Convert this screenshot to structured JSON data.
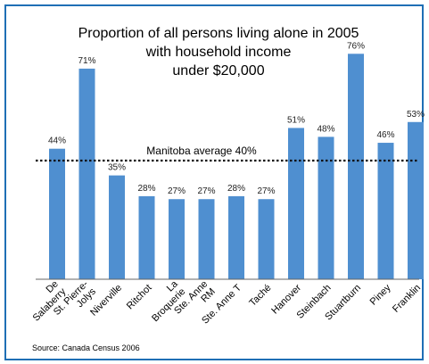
{
  "chart_data": {
    "type": "bar",
    "title_lines": [
      "Proportion of all persons living alone in 2005",
      "with household income",
      "under $20,000"
    ],
    "categories": [
      "De Salaberry",
      "St. Pierre-Jolys",
      "Niverville",
      "Ritchot",
      "La Broquerie",
      "Ste. Anne RM",
      "Ste. Anne T",
      "Taché",
      "Hanover",
      "Steinbach",
      "Stuartburn",
      "Piney",
      "Franklin"
    ],
    "category_label_lines": [
      [
        "De",
        "Salaberry"
      ],
      [
        "St. Pierre-",
        "Jolys"
      ],
      [
        "Niverville"
      ],
      [
        "Ritchot"
      ],
      [
        "La",
        "Broquerie"
      ],
      [
        "Ste. Anne",
        "RM"
      ],
      [
        "Ste. Anne T"
      ],
      [
        "Taché"
      ],
      [
        "Hanover"
      ],
      [
        "Steinbach"
      ],
      [
        "Stuartburn"
      ],
      [
        "Piney"
      ],
      [
        "Franklin"
      ]
    ],
    "values": [
      44,
      71,
      35,
      28,
      27,
      27,
      28,
      27,
      51,
      48,
      76,
      46,
      53
    ],
    "value_labels": [
      "44%",
      "71%",
      "35%",
      "28%",
      "27%",
      "27%",
      "28%",
      "27%",
      "51%",
      "48%",
      "76%",
      "46%",
      "53%"
    ],
    "ylim": [
      0,
      80
    ],
    "grid": false,
    "bar_color": "#4f8fd0",
    "reference_line": {
      "value": 40,
      "label": "Manitoba average 40%"
    }
  },
  "source": "Source:  Canada Census 2006",
  "colors": {
    "frame": "#1f6fb5",
    "bar": "#4f8fd0"
  }
}
